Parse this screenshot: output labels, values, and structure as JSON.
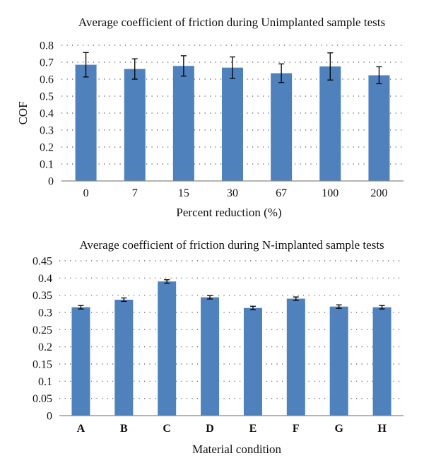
{
  "chart_data": [
    {
      "type": "bar",
      "title": "Average coefficient of friction during  Unimplanted sample tests",
      "xlabel": "Percent reduction (%)",
      "ylabel": "COF",
      "ylim": [
        0,
        0.8
      ],
      "yticks": [
        "0",
        "0.1",
        "0.2",
        "0.3",
        "0.4",
        "0.5",
        "0.6",
        "0.7",
        "0.8"
      ],
      "ytick_values": [
        0,
        0.1,
        0.2,
        0.3,
        0.4,
        0.5,
        0.6,
        0.7,
        0.8
      ],
      "categories": [
        "0",
        "7",
        "15",
        "30",
        "67",
        "100",
        "200"
      ],
      "values": [
        0.685,
        0.66,
        0.678,
        0.668,
        0.635,
        0.675,
        0.623
      ],
      "errors": [
        0.072,
        0.06,
        0.06,
        0.063,
        0.055,
        0.08,
        0.05
      ],
      "grid": true,
      "bar_color": "#4f81bd",
      "category_bold": false
    },
    {
      "type": "bar",
      "title": "Average coefficient of friction during  N-implanted sample tests",
      "xlabel": "Material condition",
      "ylabel": "",
      "ylim": [
        0,
        0.45
      ],
      "yticks": [
        "0",
        "0.05",
        "0.1",
        "0.15",
        "0.2",
        "0.25",
        "0.3",
        "0.35",
        "0.4",
        "0.45"
      ],
      "ytick_values": [
        0,
        0.05,
        0.1,
        0.15,
        0.2,
        0.25,
        0.3,
        0.35,
        0.4,
        0.45
      ],
      "categories": [
        "A",
        "B",
        "C",
        "D",
        "E",
        "F",
        "G",
        "H"
      ],
      "values": [
        0.315,
        0.337,
        0.39,
        0.344,
        0.313,
        0.34,
        0.317,
        0.315
      ],
      "errors": [
        0.005,
        0.005,
        0.005,
        0.005,
        0.005,
        0.005,
        0.005,
        0.005
      ],
      "grid": true,
      "bar_color": "#4f81bd",
      "category_bold": true
    }
  ]
}
